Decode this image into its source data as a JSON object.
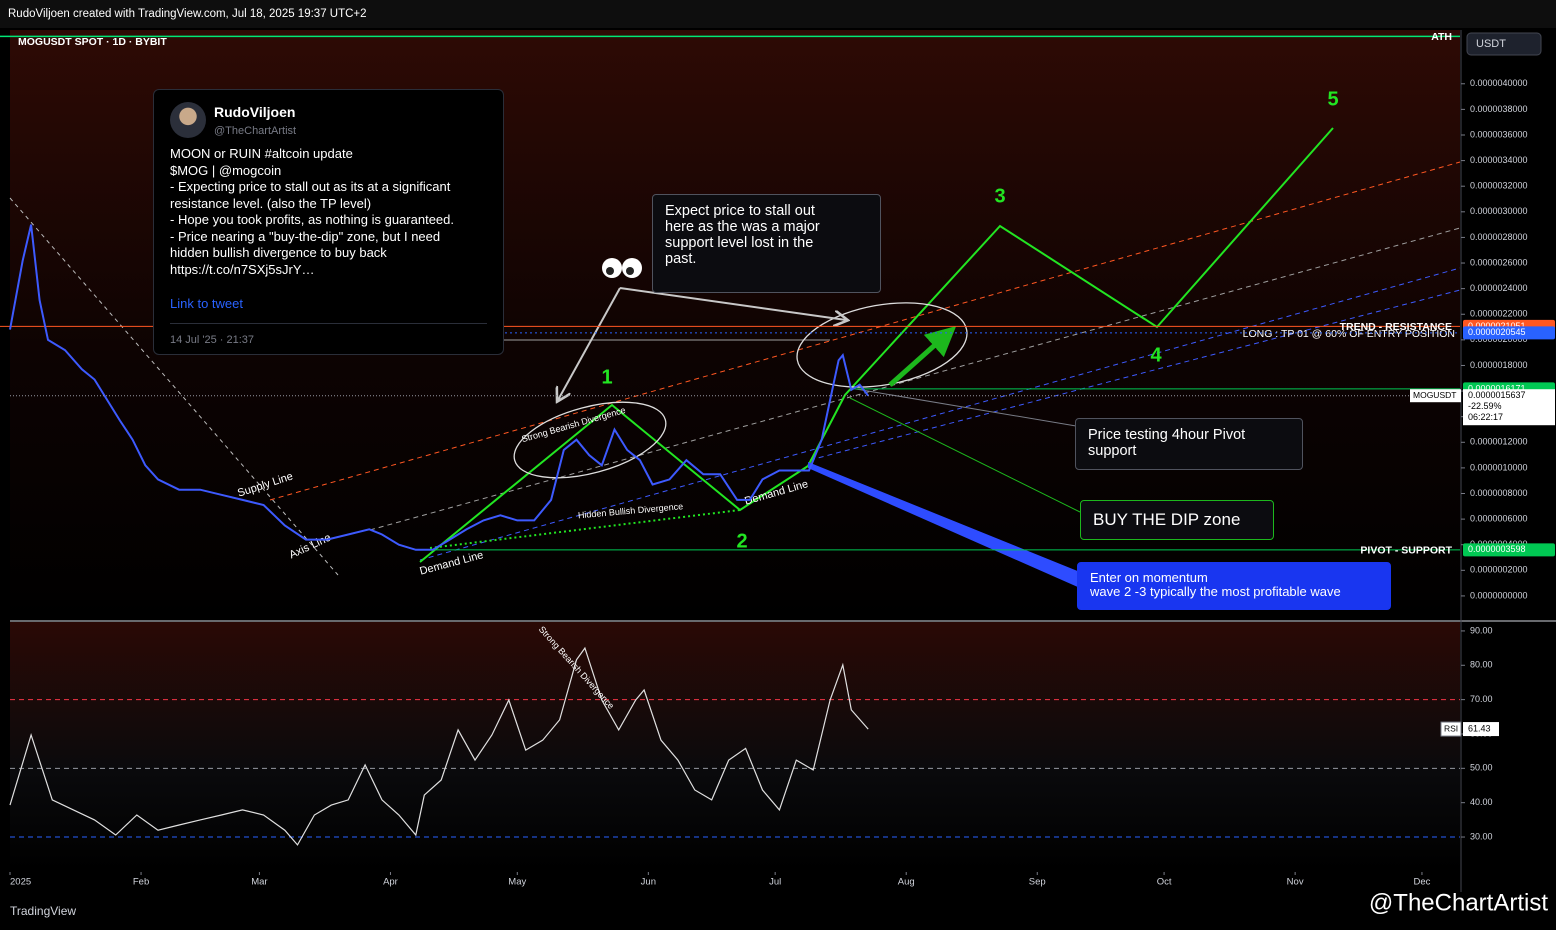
{
  "header": "RudoViljoen created with TradingView.com, Jul 18, 2025 19:37 UTC+2",
  "symbol": "MOGUSDT SPOT · 1D · BYBIT",
  "currency": "USDT",
  "tweet": {
    "name": "RudoViljoen",
    "handle": "@TheChartArtist",
    "lines": [
      "MOON or RUIN #altcoin update",
      "$MOG | @mogcoin",
      "- Expecting price to stall out as its at a significant",
      "resistance level. (also the TP level)",
      "- Hope you took profits, as nothing is guaranteed.",
      "- Price nearing a \"buy-the-dip\" zone, but I need",
      "hidden bullish divergence to buy back",
      "https://t.co/n7SXj5sJrY…"
    ],
    "link": "Link to tweet",
    "date": "14 Jul '25 · 21:37"
  },
  "callouts": {
    "stall": [
      "Expect price to stall out",
      "here as the was a major",
      "support level lost in the",
      "past."
    ],
    "pivot": [
      "Price testing 4hour Pivot",
      "support"
    ],
    "dip": "BUY THE DIP  zone",
    "momentum": [
      "Enter on momentum",
      "wave 2 -3  typically the most profitable wave"
    ]
  },
  "drawing_labels": {
    "supply": "Supply Line",
    "axis": "Axis Line",
    "demand1": "Demand Line",
    "demand2": "Demand Line",
    "bearish": "Strong Bearish Divergence",
    "hidden": "Hidden Bullish Divergence",
    "long": "LONG : TP 01 @ 60% OF ENTRY POSITION",
    "waves": [
      "1",
      "2",
      "3",
      "4",
      "5"
    ]
  },
  "footer": {
    "brand": "TradingView",
    "author": "@TheChartArtist"
  },
  "chart_data": [
    {
      "type": "line",
      "name": "MOGUSDT",
      "color": "#3d5afe",
      "x": [
        0,
        3,
        5,
        7,
        9,
        13,
        17,
        20,
        23,
        26,
        29,
        32,
        35,
        40,
        45,
        50,
        55,
        60,
        65,
        70,
        75,
        80,
        85,
        88,
        92,
        96,
        100,
        104,
        108,
        112,
        116,
        120,
        124,
        128,
        131,
        134,
        137,
        140,
        143,
        146,
        149,
        152,
        156,
        160,
        164,
        168,
        172,
        175,
        178,
        182,
        186,
        189,
        192,
        194,
        196,
        197,
        199,
        201,
        203
      ],
      "values": [
        2.08e-06,
        2.62e-06,
        2.9e-06,
        2.31e-06,
        2e-06,
        1.92e-06,
        1.77e-06,
        1.69e-06,
        1.53e-06,
        1.37e-06,
        1.22e-06,
        1.02e-06,
        9.1e-07,
        8.3e-07,
        8.3e-07,
        7.9e-07,
        7.5e-07,
        7.1e-07,
        5.5e-07,
        4.4e-07,
        4.4e-07,
        4.8e-07,
        5.2e-07,
        4.8e-07,
        4e-07,
        3.6e-07,
        3.6e-07,
        4.4e-07,
        5.2e-07,
        5.9e-07,
        6.3e-07,
        5.9e-07,
        5.9e-07,
        7.5e-07,
        1.14e-06,
        1.22e-06,
        1.1e-06,
        1.02e-06,
        1.3e-06,
        1.14e-06,
        1.06e-06,
        8.7e-07,
        9.1e-07,
        1.06e-06,
        9.5e-07,
        9.5e-07,
        7.5e-07,
        7.5e-07,
        9.1e-07,
        9.8e-07,
        9.8e-07,
        9.8e-07,
        1.22e-06,
        1.53e-06,
        1.84e-06,
        1.88e-06,
        1.61e-06,
        1.65e-06,
        1.5637e-06
      ],
      "last": {
        "label": "0.0000015637",
        "change": "-22.59%",
        "countdown": "06:22:17"
      },
      "xlim": [
        0,
        343
      ],
      "ylim": [
        -1.88e-07,
        4.42e-06
      ],
      "yticks": [
        {
          "value": 0,
          "label": "0.0000000000"
        },
        {
          "value": 2e-07,
          "label": "0.0000002000"
        },
        {
          "value": 4e-07,
          "label": "0.0000004000"
        },
        {
          "value": 6e-07,
          "label": "0.0000006000"
        },
        {
          "value": 8e-07,
          "label": "0.0000008000"
        },
        {
          "value": 1e-06,
          "label": "0.0000010000"
        },
        {
          "value": 1.2e-06,
          "label": "0.0000012000"
        },
        {
          "value": 1.4e-06,
          "label": "0.0000014000"
        },
        {
          "value": 1.6e-06,
          "label": "0.0000016000"
        },
        {
          "value": 1.8e-06,
          "label": "0.0000018000"
        },
        {
          "value": 2e-06,
          "label": "0.0000020000"
        },
        {
          "value": 2.2e-06,
          "label": "0.0000022000"
        },
        {
          "value": 2.4e-06,
          "label": "0.0000024000"
        },
        {
          "value": 2.6e-06,
          "label": "0.0000026000"
        },
        {
          "value": 2.8e-06,
          "label": "0.0000028000"
        },
        {
          "value": 3e-06,
          "label": "0.0000030000"
        },
        {
          "value": 3.2e-06,
          "label": "0.0000032000"
        },
        {
          "value": 3.4e-06,
          "label": "0.0000034000"
        },
        {
          "value": 3.6e-06,
          "label": "0.0000036000"
        },
        {
          "value": 3.8e-06,
          "label": "0.0000038000"
        },
        {
          "value": 4e-06,
          "label": "0.0000040000"
        }
      ],
      "levels": [
        {
          "name": "ATH",
          "value": 4.37e-06,
          "color": "#00e676"
        },
        {
          "name": "TREND - RESISTANCE",
          "value": 2.1051e-06,
          "label": "0.0000021051",
          "color": "#ff5722"
        },
        {
          "value": 2.0545e-06,
          "label": "0.0000020545",
          "color": "#2962ff"
        },
        {
          "value": 1.6171e-06,
          "label": "0.0000016171",
          "color": "#00c853"
        },
        {
          "name": "PIVOT - SUPPORT",
          "value": 3.598e-07,
          "label": "0.0000003598",
          "color": "#00c853"
        }
      ],
      "grid": false
    },
    {
      "type": "line",
      "name": "RSI",
      "color": "#e0e0e0",
      "x": [
        0,
        5,
        10,
        15,
        20,
        25,
        30,
        35,
        40,
        45,
        50,
        55,
        60,
        65,
        68,
        72,
        76,
        80,
        84,
        88,
        92,
        96,
        98,
        102,
        106,
        110,
        114,
        118,
        122,
        126,
        130,
        134,
        136,
        140,
        144,
        148,
        150,
        154,
        158,
        162,
        166,
        170,
        174,
        178,
        182,
        186,
        190,
        194,
        197,
        199,
        203
      ],
      "values": [
        39.3,
        59.7,
        40.8,
        37.9,
        35,
        30.6,
        36.4,
        32,
        33.5,
        35,
        36.4,
        37.9,
        36.4,
        32,
        27.7,
        36.4,
        39.3,
        40.8,
        51,
        40.8,
        36.4,
        30.6,
        42.2,
        46.6,
        61.2,
        52.4,
        59.7,
        69.9,
        55.3,
        58.2,
        64.1,
        81.6,
        85,
        69.9,
        61.2,
        69.9,
        72.8,
        58.2,
        52.4,
        43.7,
        40.8,
        52.4,
        55.8,
        43.7,
        37.9,
        52.4,
        49.5,
        69.9,
        80.1,
        67,
        61.43
      ],
      "xlim": [
        0,
        343
      ],
      "ylim": [
        20.4,
        92.6
      ],
      "yticks": [
        {
          "value": 30,
          "label": "30.00"
        },
        {
          "value": 40,
          "label": "40.00"
        },
        {
          "value": 50,
          "label": "50.00"
        },
        {
          "value": 60,
          "label": "60.00"
        },
        {
          "value": 70,
          "label": "70.00"
        },
        {
          "value": 80,
          "label": "80.00"
        },
        {
          "value": 90,
          "label": "90.00"
        }
      ],
      "xticks": [
        {
          "value": 0,
          "label": "2025"
        },
        {
          "value": 31,
          "label": "Feb"
        },
        {
          "value": 59,
          "label": "Mar"
        },
        {
          "value": 90,
          "label": "Apr"
        },
        {
          "value": 120,
          "label": "May"
        },
        {
          "value": 151,
          "label": "Jun"
        },
        {
          "value": 181,
          "label": "Jul"
        },
        {
          "value": 212,
          "label": "Aug"
        },
        {
          "value": 243,
          "label": "Sep"
        },
        {
          "value": 273,
          "label": "Oct"
        },
        {
          "value": 304,
          "label": "Nov"
        },
        {
          "value": 334,
          "label": "Dec"
        }
      ],
      "bands": [
        {
          "value": 70,
          "color": "#f23645"
        },
        {
          "value": 50,
          "color": "#9598a1"
        },
        {
          "value": 30,
          "color": "#2962ff"
        }
      ],
      "annotation": "Strong Bearish Divergence"
    }
  ]
}
